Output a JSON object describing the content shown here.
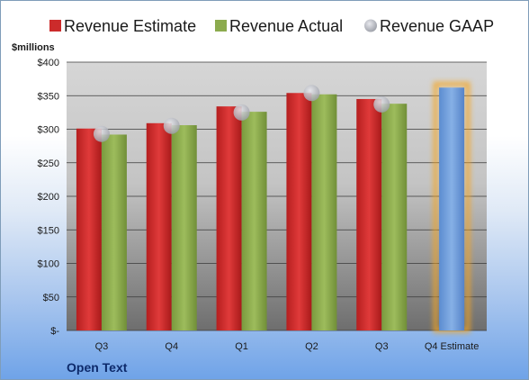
{
  "chart_data": {
    "type": "bar",
    "title": "",
    "company": "Open Text",
    "ylabel": "$millions",
    "ylim": [
      0,
      400
    ],
    "yticks": [
      0,
      50,
      100,
      150,
      200,
      250,
      300,
      350,
      400
    ],
    "ytick_labels": [
      "$-",
      "$50",
      "$100",
      "$150",
      "$200",
      "$250",
      "$300",
      "$350",
      "$400"
    ],
    "categories": [
      "Q3",
      "Q4",
      "Q1",
      "Q2",
      "Q3",
      "Q4 Estimate"
    ],
    "legend_position": "top",
    "grid": true,
    "series": [
      {
        "name": "Revenue Estimate",
        "color": "#cc2b2b",
        "values": [
          301,
          309,
          334,
          354,
          345,
          null
        ]
      },
      {
        "name": "Revenue Actual",
        "color": "#8cab4e",
        "values": [
          292,
          306,
          326,
          352,
          338,
          null
        ]
      },
      {
        "name": "Revenue GAAP",
        "color": "#b9bcc4",
        "values": [
          293,
          305,
          325,
          354,
          337,
          null
        ]
      }
    ],
    "estimate": {
      "category": "Q4 Estimate",
      "value": 362,
      "color": "#6a9bd8",
      "highlight_color": "#f5a623"
    }
  }
}
